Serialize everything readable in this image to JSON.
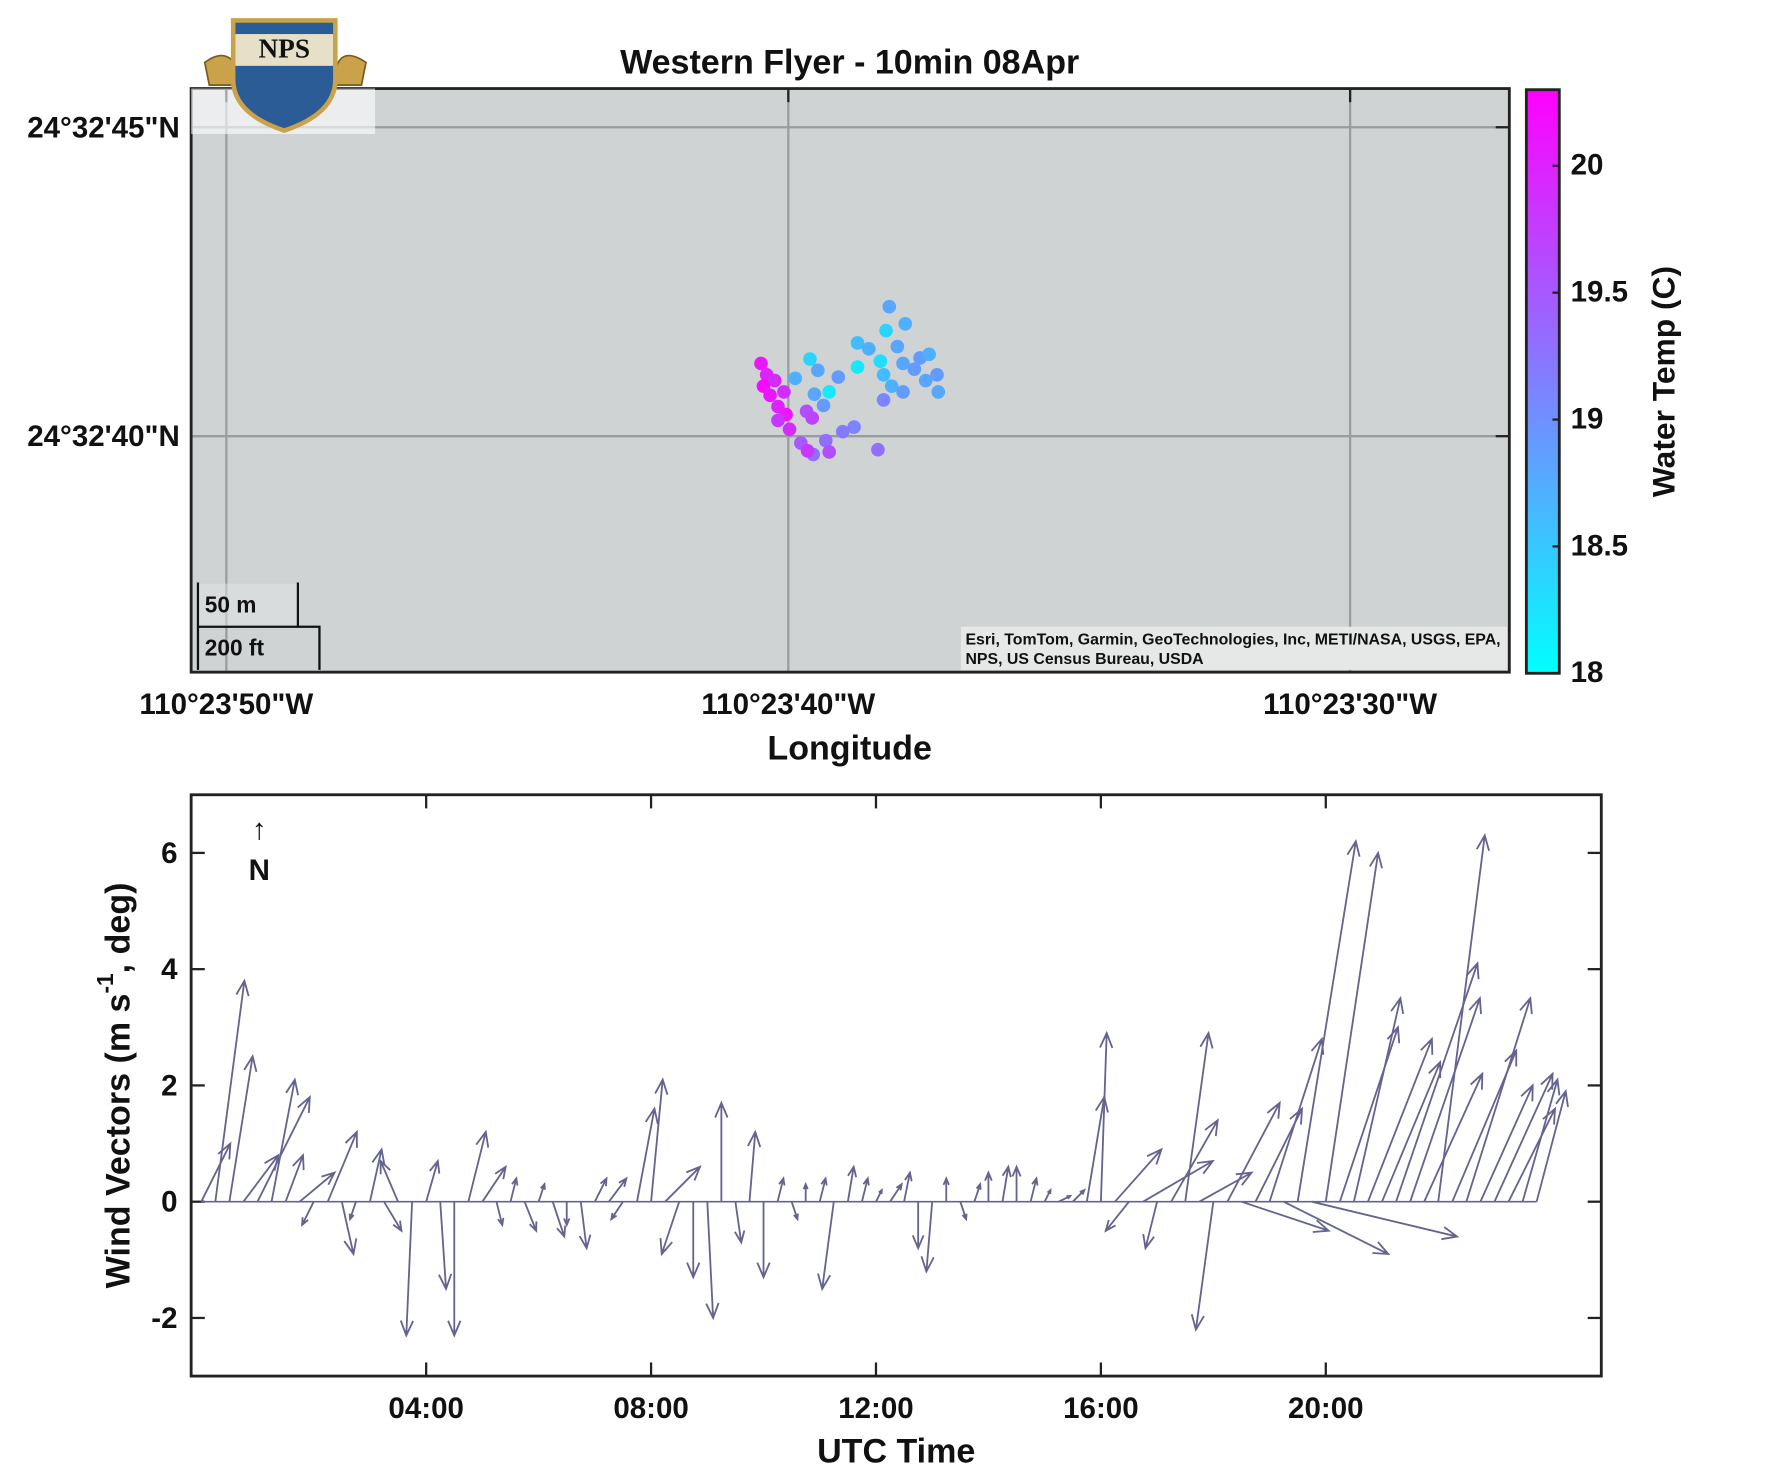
{
  "logo": "NPS",
  "chart_data": [
    {
      "type": "scatter",
      "title": "Western Flyer - 10min 08Apr",
      "xlabel": "Longitude",
      "xlim": [
        -110.397396,
        -110.39088
      ],
      "ylim": [
        24.543383,
        24.546007
      ],
      "xticks": [
        {
          "value": -110.397222,
          "label": "110°23'50\"W"
        },
        {
          "value": -110.394444,
          "label": "110°23'40\"W"
        },
        {
          "value": -110.391667,
          "label": "110°23'30\"W"
        }
      ],
      "yticks": [
        {
          "value": 24.545833,
          "label": "24°32'45\"N"
        },
        {
          "value": 24.544444,
          "label": "24°32'40\"N"
        }
      ],
      "grid": true,
      "background": "#cfd3d4",
      "x": [
        -110.393945,
        -110.393866,
        -110.393961,
        -110.394102,
        -110.394046,
        -110.393905,
        -110.393793,
        -110.393748,
        -110.393989,
        -110.394102,
        -110.393877,
        -110.393821,
        -110.393973,
        -110.393765,
        -110.393709,
        -110.393933,
        -110.393877,
        -110.393703,
        -110.393973,
        -110.394337,
        -110.394298,
        -110.39441,
        -110.394197,
        -110.394242,
        -110.394315,
        -110.39427,
        -110.394119,
        -110.394175,
        -110.394001,
        -110.394259,
        -110.394382,
        -110.394321,
        -110.394242,
        -110.394579,
        -110.394551,
        -110.394511,
        -110.394567,
        -110.394534,
        -110.394466,
        -110.394495,
        -110.394455,
        -110.394495,
        -110.394438,
        -110.394354,
        -110.394349,
        -110.394326
      ],
      "y": [
        24.545026,
        24.544949,
        24.544919,
        24.544863,
        24.544837,
        24.544847,
        24.544796,
        24.544812,
        24.544781,
        24.544755,
        24.544771,
        24.544745,
        24.54472,
        24.544694,
        24.54472,
        24.544669,
        24.544643,
        24.544643,
        24.544607,
        24.544791,
        24.54474,
        24.544704,
        24.54471,
        24.544643,
        24.544633,
        24.544582,
        24.544485,
        24.544464,
        24.544383,
        24.544424,
        24.544413,
        24.544362,
        24.544373,
        24.544771,
        24.54472,
        24.544694,
        24.544669,
        24.544628,
        24.544643,
        24.544577,
        24.544541,
        24.544515,
        24.544475,
        24.544556,
        24.544378,
        24.544526
      ],
      "c": [
        18.8,
        18.7,
        18.4,
        18.6,
        18.7,
        18.8,
        18.9,
        18.7,
        18.3,
        18.2,
        18.8,
        18.9,
        18.6,
        18.8,
        18.9,
        18.7,
        18.9,
        18.8,
        19.1,
        18.4,
        18.8,
        18.7,
        18.9,
        18.2,
        18.8,
        18.9,
        19.1,
        19.2,
        19.3,
        19.3,
        19.5,
        19.3,
        19.6,
        20.1,
        20.0,
        19.9,
        20.2,
        20.1,
        19.9,
        20.0,
        20.1,
        19.8,
        19.9,
        19.6,
        19.8,
        19.7
      ],
      "colorbar": {
        "label": "Water Temp (C)",
        "clim": [
          18,
          20.3
        ],
        "ticks": [
          18,
          18.5,
          19,
          19.5,
          20
        ],
        "colormap": [
          "#00ffff",
          "#ff00ff"
        ]
      },
      "scale_bar": [
        "50 m",
        "200 ft"
      ],
      "attribution": [
        "Esri, TomTom, Garmin, GeoTechnologies, Inc, METI/NASA, USGS, EPA,",
        "NPS, US Census Bureau, USDA"
      ]
    },
    {
      "type": "quiver",
      "xlabel": "UTC Time",
      "ylabel": [
        "Wind Vectors (m s",
        "-1",
        ", deg)"
      ],
      "annotation": [
        "↑",
        "N"
      ],
      "color": "#63648f",
      "xlim": [
        -0.18,
        24.9
      ],
      "ylim": [
        -3,
        7
      ],
      "xticks": [
        {
          "value": 4,
          "label": "04:00"
        },
        {
          "value": 8,
          "label": "08:00"
        },
        {
          "value": 12,
          "label": "12:00"
        },
        {
          "value": 16,
          "label": "16:00"
        },
        {
          "value": 20,
          "label": "20:00"
        }
      ],
      "yticks": [
        -2,
        0,
        2,
        4,
        6
      ],
      "x": [
        0,
        0.25,
        0.5,
        0.75,
        1,
        1.25,
        1.5,
        1.75,
        2,
        2.25,
        2.5,
        2.75,
        3,
        3.25,
        3.5,
        3.75,
        4,
        4.25,
        4.5,
        4.75,
        5,
        5.25,
        5.5,
        5.75,
        6,
        6.25,
        6.5,
        6.75,
        7,
        7.25,
        7.5,
        7.75,
        8,
        8.25,
        8.5,
        8.75,
        9,
        9.25,
        9.5,
        9.75,
        10,
        10.25,
        10.5,
        10.75,
        11,
        11.25,
        11.5,
        11.75,
        12,
        12.25,
        12.5,
        12.75,
        13,
        13.25,
        13.5,
        13.75,
        14,
        14.25,
        14.5,
        14.75,
        15,
        15.25,
        15.5,
        15.75,
        16,
        16.25,
        16.5,
        16.75,
        17,
        17.25,
        17.5,
        17.75,
        18,
        18.25,
        18.5,
        18.75,
        19,
        19.25,
        19.5,
        19.75,
        20,
        20.25,
        20.5,
        20.75,
        21,
        21.25,
        21.5,
        21.75,
        22,
        22.25,
        22.5,
        22.75,
        23,
        23.25,
        23.5,
        23.75
      ],
      "u": [
        0.5,
        0.5,
        0.4,
        0.6,
        0.9,
        0.4,
        0.3,
        0.6,
        -0.2,
        0.5,
        0.2,
        -0.1,
        0.2,
        0.3,
        -0.3,
        -0.1,
        0.2,
        0.1,
        0,
        0.3,
        0.4,
        0.1,
        0.1,
        0.2,
        0.1,
        0.2,
        0,
        0.1,
        0.2,
        0.3,
        -0.2,
        0.3,
        0.2,
        0.6,
        -0.3,
        0,
        0.1,
        0,
        0.1,
        0.1,
        0,
        0.1,
        0.1,
        0,
        0.1,
        -0.2,
        0.1,
        0.1,
        0.1,
        0.2,
        0.1,
        0,
        -0.1,
        0,
        0.1,
        0.1,
        0,
        0.1,
        0,
        0.1,
        0.1,
        0.2,
        0.2,
        0.3,
        0.1,
        0.8,
        -0.4,
        1.2,
        -0.2,
        0.8,
        0.4,
        0.9,
        -0.3,
        0.9,
        1.5,
        0.8,
        0.9,
        1.8,
        1,
        2.5,
        0.9,
        1,
        0.8,
        1.1,
        1,
        1.4,
        1.2,
        1,
        0.8,
        1.1,
        1.1,
        0.9,
        1,
        0.8,
        0.6,
        0.5
      ],
      "v": [
        1,
        3.8,
        2.5,
        0.8,
        1.8,
        2.1,
        0.8,
        0.5,
        -0.4,
        1.2,
        -0.9,
        -0.3,
        0.9,
        -0.5,
        0.7,
        -2.3,
        0.7,
        -1.5,
        -2.3,
        1.2,
        0.6,
        -0.4,
        0.4,
        -0.5,
        0.3,
        -0.6,
        -0.4,
        -0.8,
        0.4,
        0.4,
        -0.3,
        1.6,
        2.1,
        0.6,
        -0.9,
        -1.3,
        -2,
        1.7,
        -0.7,
        1.2,
        -1.3,
        0.4,
        -0.3,
        0.3,
        0.4,
        -1.5,
        0.6,
        0.4,
        0.2,
        0.3,
        0.5,
        -0.8,
        -1.2,
        0.4,
        -0.3,
        0.3,
        0.5,
        0.6,
        0.6,
        0.4,
        0.2,
        0.1,
        0.2,
        1.8,
        2.9,
        0.9,
        -0.5,
        0.7,
        -0.8,
        1.4,
        2.9,
        0.5,
        -2.2,
        1.7,
        -0.5,
        1.6,
        2.8,
        -0.9,
        6.2,
        -0.6,
        6,
        3,
        3.5,
        2.8,
        2.4,
        4.1,
        3.5,
        2.2,
        6.3,
        2.6,
        3.5,
        2,
        2.2,
        1.6,
        2.1,
        1.9
      ]
    }
  ]
}
